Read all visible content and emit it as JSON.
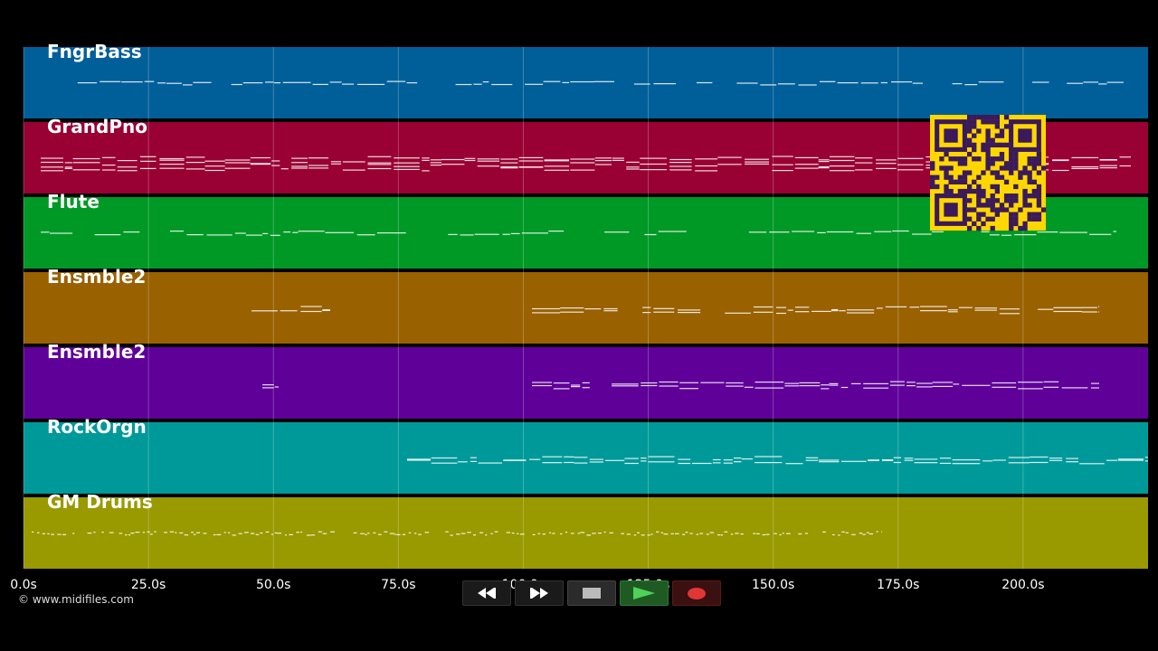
{
  "tracks": [
    {
      "name": "FngrBass",
      "color": "#005f99"
    },
    {
      "name": "GrandPno",
      "color": "#990033"
    },
    {
      "name": "Flute",
      "color": "#009926"
    },
    {
      "name": "Ensmble2",
      "color": "#996100"
    },
    {
      "name": "Ensmble2",
      "color": "#5f0099"
    },
    {
      "name": "RockOrgn",
      "color": "#009999"
    },
    {
      "name": "GM Drums",
      "color": "#999900"
    }
  ],
  "timeline": {
    "unit": "s",
    "range": [
      0,
      225
    ],
    "ticks": [
      {
        "value": 0,
        "label": "0.0s"
      },
      {
        "value": 25,
        "label": "25.0s"
      },
      {
        "value": 50,
        "label": "50.0s"
      },
      {
        "value": 75,
        "label": "75.0s"
      },
      {
        "value": 100,
        "label": "100.0s"
      },
      {
        "value": 125,
        "label": "125.0s"
      },
      {
        "value": 150,
        "label": "150.0s"
      },
      {
        "value": 175,
        "label": "175.0s"
      },
      {
        "value": 200,
        "label": "200.0s"
      }
    ]
  },
  "copyright": "© www.midifiles.com",
  "transport": {
    "rewind_icon": "rewind-icon",
    "fast_forward_icon": "fast-forward-icon",
    "stop_icon": "stop-icon",
    "play_icon": "play-icon",
    "record_icon": "record-icon"
  },
  "qr": {
    "color": "#ffd700",
    "dark": "#3a1a5a"
  }
}
